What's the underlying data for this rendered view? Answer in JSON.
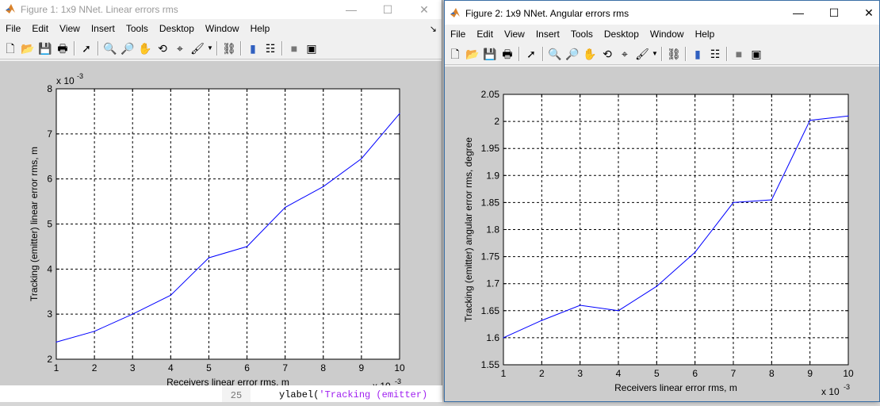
{
  "figures": [
    {
      "title": "Figure 1: 1x9 NNet. Linear errors rms",
      "menu": [
        "File",
        "Edit",
        "View",
        "Insert",
        "Tools",
        "Desktop",
        "Window",
        "Help"
      ],
      "chart_data": {
        "type": "line",
        "title": "",
        "xlabel": "Receivers linear error rms, m",
        "ylabel": "Tracking (emitter) linear error rms, m",
        "x_exponent_label": "x 10",
        "x_exponent": "-3",
        "y_exponent_label": "x 10",
        "y_exponent": "-3",
        "xlim": [
          1,
          10
        ],
        "ylim": [
          2,
          8
        ],
        "xticks": [
          "1",
          "2",
          "3",
          "4",
          "5",
          "6",
          "7",
          "8",
          "9",
          "10"
        ],
        "yticks": [
          "2",
          "3",
          "4",
          "5",
          "6",
          "7",
          "8"
        ],
        "grid": true,
        "line_color": "#0000ff",
        "x": [
          1,
          2,
          3,
          4,
          5,
          6,
          7,
          8,
          9,
          10
        ],
        "y": [
          2.38,
          2.62,
          3.0,
          3.42,
          4.25,
          4.5,
          5.37,
          5.83,
          6.45,
          7.45
        ]
      }
    },
    {
      "title": "Figure 2: 1x9 NNet. Angular errors rms",
      "menu": [
        "File",
        "Edit",
        "View",
        "Insert",
        "Tools",
        "Desktop",
        "Window",
        "Help"
      ],
      "chart_data": {
        "type": "line",
        "title": "",
        "xlabel": "Receivers linear error rms, m",
        "ylabel": "Tracking (emitter) angular error rms, degree",
        "x_exponent_label": "x 10",
        "x_exponent": "-3",
        "xlim": [
          1,
          10
        ],
        "ylim": [
          1.55,
          2.05
        ],
        "xticks": [
          "1",
          "2",
          "3",
          "4",
          "5",
          "6",
          "7",
          "8",
          "9",
          "10"
        ],
        "yticks": [
          "1.55",
          "1.6",
          "1.65",
          "1.7",
          "1.75",
          "1.8",
          "1.85",
          "1.9",
          "1.95",
          "2",
          "2.05"
        ],
        "grid": true,
        "line_color": "#0000ff",
        "x": [
          1,
          2,
          3,
          4,
          5,
          6,
          7,
          8,
          9,
          10
        ],
        "y": [
          1.6,
          1.632,
          1.66,
          1.65,
          1.695,
          1.758,
          1.85,
          1.855,
          2.002,
          2.01
        ]
      }
    }
  ],
  "editor": {
    "line_number": "25",
    "code_prefix": "ylabel(",
    "code_string": "'Tracking (emitter)"
  }
}
